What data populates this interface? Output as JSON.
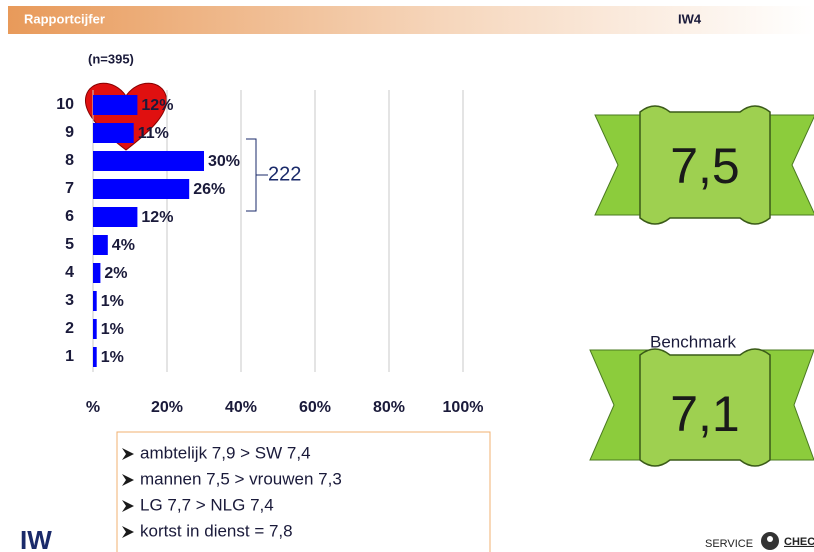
{
  "chart_data": {
    "type": "bar",
    "orientation": "horizontal",
    "sample_note": "(n=395)",
    "categories": [
      "10",
      "9",
      "8",
      "7",
      "6",
      "5",
      "4",
      "3",
      "2",
      "1"
    ],
    "values": [
      12,
      11,
      30,
      26,
      12,
      4,
      2,
      1,
      1,
      1
    ],
    "value_labels": [
      "12%",
      "11%",
      "30%",
      "26%",
      "12%",
      "4%",
      "2%",
      "1%",
      "1%",
      "1%"
    ],
    "color": "#0000ff",
    "xlim": [
      0,
      100
    ],
    "xticks": [
      {
        "value": 0,
        "label": "%"
      },
      {
        "value": 20,
        "label": "20%"
      },
      {
        "value": 40,
        "label": "40%"
      },
      {
        "value": 60,
        "label": "60%"
      },
      {
        "value": 80,
        "label": "80%"
      },
      {
        "value": 100,
        "label": "100%"
      }
    ],
    "grid": true,
    "annotation": "222"
  },
  "header": {
    "title": "Rapportcijfer",
    "code": "IW4"
  },
  "scores": {
    "score": "7,5",
    "benchmark_label": "Benchmark",
    "benchmark": "7,1"
  },
  "notes": [
    "ambtelijk 7,9 > SW 7,4",
    "mannen 7,5 > vrouwen 7,3",
    "LG 7,7 > NLG 7,4",
    "kortst in dienst = 7,8"
  ],
  "logos": {
    "left": "IW",
    "right_1": "SERVICE",
    "right_2": "CHECK"
  }
}
